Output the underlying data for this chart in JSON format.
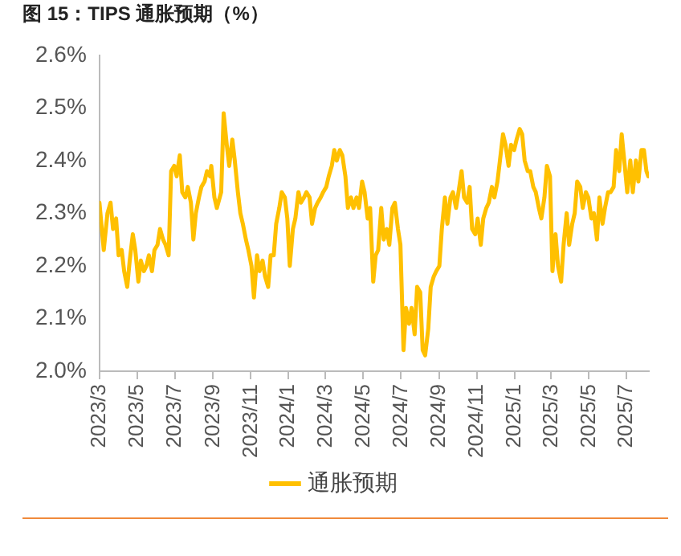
{
  "chart_data": {
    "type": "line",
    "title": "图 15：TIPS 通胀预期（%）",
    "x": [
      "2023-03-01",
      "2023-03-08",
      "2023-03-14",
      "2023-03-19",
      "2023-03-23",
      "2023-03-28",
      "2023-04-01",
      "2023-04-06",
      "2023-04-10",
      "2023-04-15",
      "2023-04-19",
      "2023-04-24",
      "2023-04-28",
      "2023-05-03",
      "2023-05-07",
      "2023-05-12",
      "2023-05-16",
      "2023-05-20",
      "2023-05-25",
      "2023-05-29",
      "2023-06-03",
      "2023-06-07",
      "2023-06-12",
      "2023-06-16",
      "2023-06-21",
      "2023-06-25",
      "2023-06-30",
      "2023-07-04",
      "2023-07-09",
      "2023-07-13",
      "2023-07-18",
      "2023-07-22",
      "2023-07-27",
      "2023-07-31",
      "2023-08-04",
      "2023-08-09",
      "2023-08-13",
      "2023-08-18",
      "2023-08-22",
      "2023-08-27",
      "2023-08-29",
      "2023-09-03",
      "2023-09-07",
      "2023-09-14",
      "2023-09-18",
      "2023-09-23",
      "2023-09-27",
      "2023-10-02",
      "2023-10-06",
      "2023-10-11",
      "2023-10-15",
      "2023-10-19",
      "2023-10-24",
      "2023-10-28",
      "2023-11-02",
      "2023-11-06",
      "2023-11-11",
      "2023-11-15",
      "2023-11-20",
      "2023-11-24",
      "2023-11-29",
      "2023-12-03",
      "2023-12-08",
      "2023-12-12",
      "2023-12-17",
      "2023-12-21",
      "2023-12-26",
      "2023-12-30",
      "2024-01-03",
      "2024-01-08",
      "2024-01-12",
      "2024-01-17",
      "2024-01-21",
      "2024-01-26",
      "2024-01-30",
      "2024-02-04",
      "2024-02-08",
      "2024-02-13",
      "2024-02-17",
      "2024-02-22",
      "2024-02-26",
      "2024-03-02",
      "2024-03-06",
      "2024-03-11",
      "2024-03-15",
      "2024-03-19",
      "2024-03-24",
      "2024-03-28",
      "2024-04-02",
      "2024-04-06",
      "2024-04-11",
      "2024-04-15",
      "2024-04-20",
      "2024-04-24",
      "2024-04-29",
      "2024-05-03",
      "2024-05-08",
      "2024-05-12",
      "2024-05-17",
      "2024-05-21",
      "2024-05-25",
      "2024-05-30",
      "2024-06-03",
      "2024-06-08",
      "2024-06-12",
      "2024-06-17",
      "2024-06-21",
      "2024-06-26",
      "2024-06-30",
      "2024-07-05",
      "2024-07-09",
      "2024-07-14",
      "2024-07-18",
      "2024-07-23",
      "2024-07-27",
      "2024-08-01",
      "2024-08-05",
      "2024-08-09",
      "2024-08-14",
      "2024-08-18",
      "2024-08-23",
      "2024-08-27",
      "2024-09-01",
      "2024-09-05",
      "2024-09-10",
      "2024-09-14",
      "2024-09-19",
      "2024-09-23",
      "2024-09-28",
      "2024-10-02",
      "2024-10-07",
      "2024-10-11",
      "2024-10-16",
      "2024-10-20",
      "2024-10-24",
      "2024-10-29",
      "2024-11-02",
      "2024-11-07",
      "2024-11-11",
      "2024-11-16",
      "2024-11-20",
      "2024-11-25",
      "2024-11-29",
      "2024-12-04",
      "2024-12-08",
      "2024-12-13",
      "2024-12-17",
      "2024-12-22",
      "2024-12-26",
      "2024-12-31",
      "2025-01-04",
      "2025-01-09",
      "2025-01-13",
      "2025-01-17",
      "2025-01-22",
      "2025-01-26",
      "2025-01-31",
      "2025-02-04",
      "2025-02-09",
      "2025-02-13",
      "2025-02-18",
      "2025-02-22",
      "2025-02-27",
      "2025-03-03",
      "2025-03-08",
      "2025-03-12",
      "2025-03-17",
      "2025-03-21",
      "2025-03-26",
      "2025-03-30",
      "2025-04-04",
      "2025-04-08",
      "2025-04-12",
      "2025-04-17",
      "2025-04-21",
      "2025-04-26",
      "2025-04-30",
      "2025-05-05",
      "2025-05-09",
      "2025-05-14",
      "2025-05-18",
      "2025-05-23",
      "2025-05-27",
      "2025-06-01",
      "2025-06-05",
      "2025-06-10",
      "2025-06-14",
      "2025-06-19",
      "2025-06-23",
      "2025-06-28",
      "2025-07-02",
      "2025-07-07",
      "2025-07-11",
      "2025-07-16",
      "2025-07-20",
      "2025-07-25",
      "2025-07-29",
      "2025-08-02",
      "2025-08-05"
    ],
    "series": [
      {
        "name": "通胀预期",
        "color": "#ffc000",
        "values": [
          2.32,
          2.23,
          2.3,
          2.32,
          2.27,
          2.29,
          2.22,
          2.23,
          2.19,
          2.16,
          2.21,
          2.26,
          2.23,
          2.17,
          2.21,
          2.19,
          2.2,
          2.22,
          2.19,
          2.23,
          2.24,
          2.27,
          2.25,
          2.24,
          2.22,
          2.38,
          2.39,
          2.37,
          2.41,
          2.34,
          2.33,
          2.35,
          2.32,
          2.25,
          2.3,
          2.33,
          2.35,
          2.36,
          2.38,
          2.37,
          2.39,
          2.33,
          2.31,
          2.34,
          2.49,
          2.43,
          2.39,
          2.44,
          2.4,
          2.34,
          2.3,
          2.28,
          2.25,
          2.23,
          2.2,
          2.14,
          2.22,
          2.19,
          2.21,
          2.18,
          2.16,
          2.22,
          2.22,
          2.28,
          2.31,
          2.34,
          2.33,
          2.29,
          2.2,
          2.27,
          2.29,
          2.34,
          2.32,
          2.33,
          2.34,
          2.33,
          2.28,
          2.31,
          2.32,
          2.33,
          2.34,
          2.35,
          2.37,
          2.39,
          2.42,
          2.4,
          2.42,
          2.41,
          2.37,
          2.31,
          2.33,
          2.31,
          2.33,
          2.31,
          2.36,
          2.34,
          2.29,
          2.31,
          2.17,
          2.22,
          2.23,
          2.31,
          2.25,
          2.27,
          2.24,
          2.31,
          2.32,
          2.27,
          2.24,
          2.04,
          2.12,
          2.09,
          2.12,
          2.07,
          2.16,
          2.15,
          2.04,
          2.03,
          2.08,
          2.16,
          2.18,
          2.19,
          2.2,
          2.27,
          2.33,
          2.28,
          2.33,
          2.34,
          2.31,
          2.34,
          2.38,
          2.33,
          2.32,
          2.35,
          2.27,
          2.26,
          2.29,
          2.24,
          2.29,
          2.31,
          2.32,
          2.35,
          2.33,
          2.36,
          2.4,
          2.45,
          2.43,
          2.39,
          2.43,
          2.42,
          2.44,
          2.46,
          2.45,
          2.4,
          2.38,
          2.38,
          2.35,
          2.34,
          2.31,
          2.29,
          2.33,
          2.39,
          2.37,
          2.19,
          2.26,
          2.2,
          2.17,
          2.24,
          2.3,
          2.24,
          2.28,
          2.3,
          2.36,
          2.35,
          2.31,
          2.34,
          2.33,
          2.29,
          2.3,
          2.25,
          2.33,
          2.28,
          2.31,
          2.34,
          2.34,
          2.35,
          2.42,
          2.38,
          2.45,
          2.39,
          2.34,
          2.4,
          2.34,
          2.4,
          2.36,
          2.42,
          2.42,
          2.38,
          2.37
        ]
      }
    ],
    "xlim": [
      "2023-03-01",
      "2025-08-06"
    ],
    "xticks": [
      {
        "value": "2023-03",
        "label": "2023/3"
      },
      {
        "value": "2023-05",
        "label": "2023/5"
      },
      {
        "value": "2023-07",
        "label": "2023/7"
      },
      {
        "value": "2023-09",
        "label": "2023/9"
      },
      {
        "value": "2023-11",
        "label": "2023/11"
      },
      {
        "value": "2024-01",
        "label": "2024/1"
      },
      {
        "value": "2024-03",
        "label": "2024/3"
      },
      {
        "value": "2024-05",
        "label": "2024/5"
      },
      {
        "value": "2024-07",
        "label": "2024/7"
      },
      {
        "value": "2024-09",
        "label": "2024/9"
      },
      {
        "value": "2024-11",
        "label": "2024/11"
      },
      {
        "value": "2025-01",
        "label": "2025/1"
      },
      {
        "value": "2025-03",
        "label": "2025/3"
      },
      {
        "value": "2025-05",
        "label": "2025/5"
      },
      {
        "value": "2025-07",
        "label": "2025/7"
      }
    ],
    "ylim": [
      2.0,
      2.6
    ],
    "yticks": [
      {
        "value": 2.0,
        "label": "2.0%"
      },
      {
        "value": 2.1,
        "label": "2.1%"
      },
      {
        "value": 2.2,
        "label": "2.2%"
      },
      {
        "value": 2.3,
        "label": "2.3%"
      },
      {
        "value": 2.4,
        "label": "2.4%"
      },
      {
        "value": 2.5,
        "label": "2.5%"
      },
      {
        "value": 2.6,
        "label": "2.6%"
      }
    ],
    "grid": false,
    "legend": "bottom",
    "marker": "none",
    "line_style": "solid"
  }
}
